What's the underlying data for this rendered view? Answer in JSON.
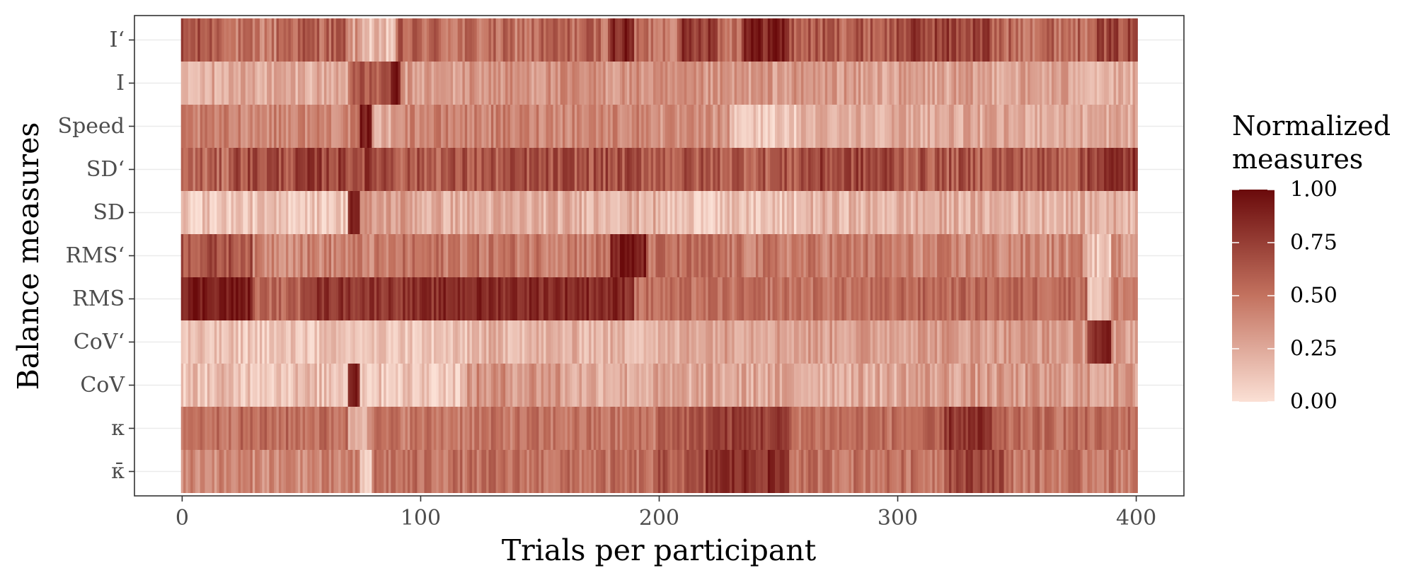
{
  "chart_data": {
    "type": "heatmap",
    "title": "",
    "xlabel": "Trials per participant",
    "ylabel": "Balance measures",
    "x_ticks": [
      0,
      100,
      200,
      300,
      400
    ],
    "xlim": [
      -20,
      420
    ],
    "n_trials": 401,
    "rows": [
      "I‘",
      "I",
      "Speed",
      "SD‘",
      "SD",
      "RMS‘",
      "RMS",
      "CoV‘",
      "CoV",
      "κ",
      "κ̄"
    ],
    "row_profiles": [
      {
        "segments": [
          [
            0,
            20,
            0.62
          ],
          [
            20,
            40,
            0.45
          ],
          [
            40,
            70,
            0.58
          ],
          [
            70,
            78,
            0.3
          ],
          [
            78,
            90,
            0.12
          ],
          [
            90,
            110,
            0.55
          ],
          [
            110,
            150,
            0.5
          ],
          [
            150,
            180,
            0.55
          ],
          [
            180,
            190,
            0.85
          ],
          [
            190,
            210,
            0.5
          ],
          [
            210,
            225,
            0.8
          ],
          [
            225,
            235,
            0.55
          ],
          [
            235,
            255,
            0.9
          ],
          [
            255,
            300,
            0.6
          ],
          [
            300,
            340,
            0.72
          ],
          [
            340,
            380,
            0.55
          ],
          [
            380,
            401,
            0.68
          ]
        ],
        "noise": 0.18
      },
      {
        "segments": [
          [
            0,
            70,
            0.25
          ],
          [
            70,
            88,
            0.6
          ],
          [
            88,
            92,
            0.95
          ],
          [
            92,
            120,
            0.3
          ],
          [
            120,
            200,
            0.35
          ],
          [
            200,
            280,
            0.32
          ],
          [
            280,
            380,
            0.28
          ],
          [
            380,
            401,
            0.2
          ]
        ],
        "noise": 0.14
      },
      {
        "segments": [
          [
            0,
            75,
            0.42
          ],
          [
            75,
            80,
            0.9
          ],
          [
            80,
            90,
            0.25
          ],
          [
            90,
            200,
            0.42
          ],
          [
            200,
            230,
            0.35
          ],
          [
            230,
            260,
            0.1
          ],
          [
            260,
            401,
            0.25
          ]
        ],
        "noise": 0.13
      },
      {
        "segments": [
          [
            0,
            20,
            0.55
          ],
          [
            20,
            50,
            0.68
          ],
          [
            50,
            90,
            0.72
          ],
          [
            90,
            140,
            0.62
          ],
          [
            140,
            200,
            0.65
          ],
          [
            200,
            260,
            0.62
          ],
          [
            260,
            300,
            0.7
          ],
          [
            300,
            380,
            0.62
          ],
          [
            380,
            401,
            0.78
          ]
        ],
        "noise": 0.18
      },
      {
        "segments": [
          [
            0,
            70,
            0.12
          ],
          [
            70,
            75,
            0.9
          ],
          [
            75,
            100,
            0.3
          ],
          [
            100,
            200,
            0.22
          ],
          [
            200,
            260,
            0.12
          ],
          [
            260,
            300,
            0.2
          ],
          [
            300,
            401,
            0.22
          ]
        ],
        "noise": 0.14
      },
      {
        "segments": [
          [
            0,
            30,
            0.65
          ],
          [
            30,
            90,
            0.42
          ],
          [
            90,
            180,
            0.48
          ],
          [
            180,
            195,
            0.9
          ],
          [
            195,
            230,
            0.5
          ],
          [
            230,
            300,
            0.45
          ],
          [
            300,
            380,
            0.4
          ],
          [
            380,
            390,
            0.12
          ],
          [
            390,
            401,
            0.35
          ]
        ],
        "noise": 0.15
      },
      {
        "segments": [
          [
            0,
            30,
            0.92
          ],
          [
            30,
            50,
            0.55
          ],
          [
            50,
            110,
            0.8
          ],
          [
            110,
            190,
            0.85
          ],
          [
            190,
            300,
            0.5
          ],
          [
            300,
            380,
            0.55
          ],
          [
            380,
            390,
            0.15
          ],
          [
            390,
            401,
            0.45
          ]
        ],
        "noise": 0.12
      },
      {
        "segments": [
          [
            0,
            120,
            0.12
          ],
          [
            120,
            210,
            0.2
          ],
          [
            210,
            300,
            0.3
          ],
          [
            300,
            380,
            0.32
          ],
          [
            380,
            390,
            0.85
          ],
          [
            390,
            401,
            0.3
          ]
        ],
        "noise": 0.13
      },
      {
        "segments": [
          [
            0,
            70,
            0.15
          ],
          [
            70,
            75,
            0.92
          ],
          [
            75,
            120,
            0.12
          ],
          [
            120,
            160,
            0.35
          ],
          [
            160,
            300,
            0.25
          ],
          [
            300,
            401,
            0.3
          ]
        ],
        "noise": 0.15
      },
      {
        "segments": [
          [
            0,
            70,
            0.52
          ],
          [
            70,
            78,
            0.25
          ],
          [
            78,
            200,
            0.48
          ],
          [
            200,
            220,
            0.62
          ],
          [
            220,
            255,
            0.75
          ],
          [
            255,
            320,
            0.52
          ],
          [
            320,
            340,
            0.8
          ],
          [
            340,
            401,
            0.52
          ]
        ],
        "noise": 0.13
      },
      {
        "segments": [
          [
            0,
            75,
            0.4
          ],
          [
            75,
            80,
            0.08
          ],
          [
            80,
            200,
            0.5
          ],
          [
            200,
            220,
            0.62
          ],
          [
            220,
            255,
            0.82
          ],
          [
            255,
            320,
            0.5
          ],
          [
            320,
            345,
            0.72
          ],
          [
            345,
            401,
            0.48
          ]
        ],
        "noise": 0.14
      }
    ],
    "value_range": [
      0,
      1
    ],
    "color_low": "#fbe0d5",
    "color_mid": "#c3725f",
    "color_high": "#6a0a0b",
    "legend": {
      "title_lines": [
        "Normalized",
        "measures"
      ],
      "labels": [
        "1.00",
        "0.75",
        "0.50",
        "0.25",
        "0.00"
      ],
      "values": [
        1.0,
        0.75,
        0.5,
        0.25,
        0.0
      ],
      "position": "right"
    },
    "grid": true
  }
}
